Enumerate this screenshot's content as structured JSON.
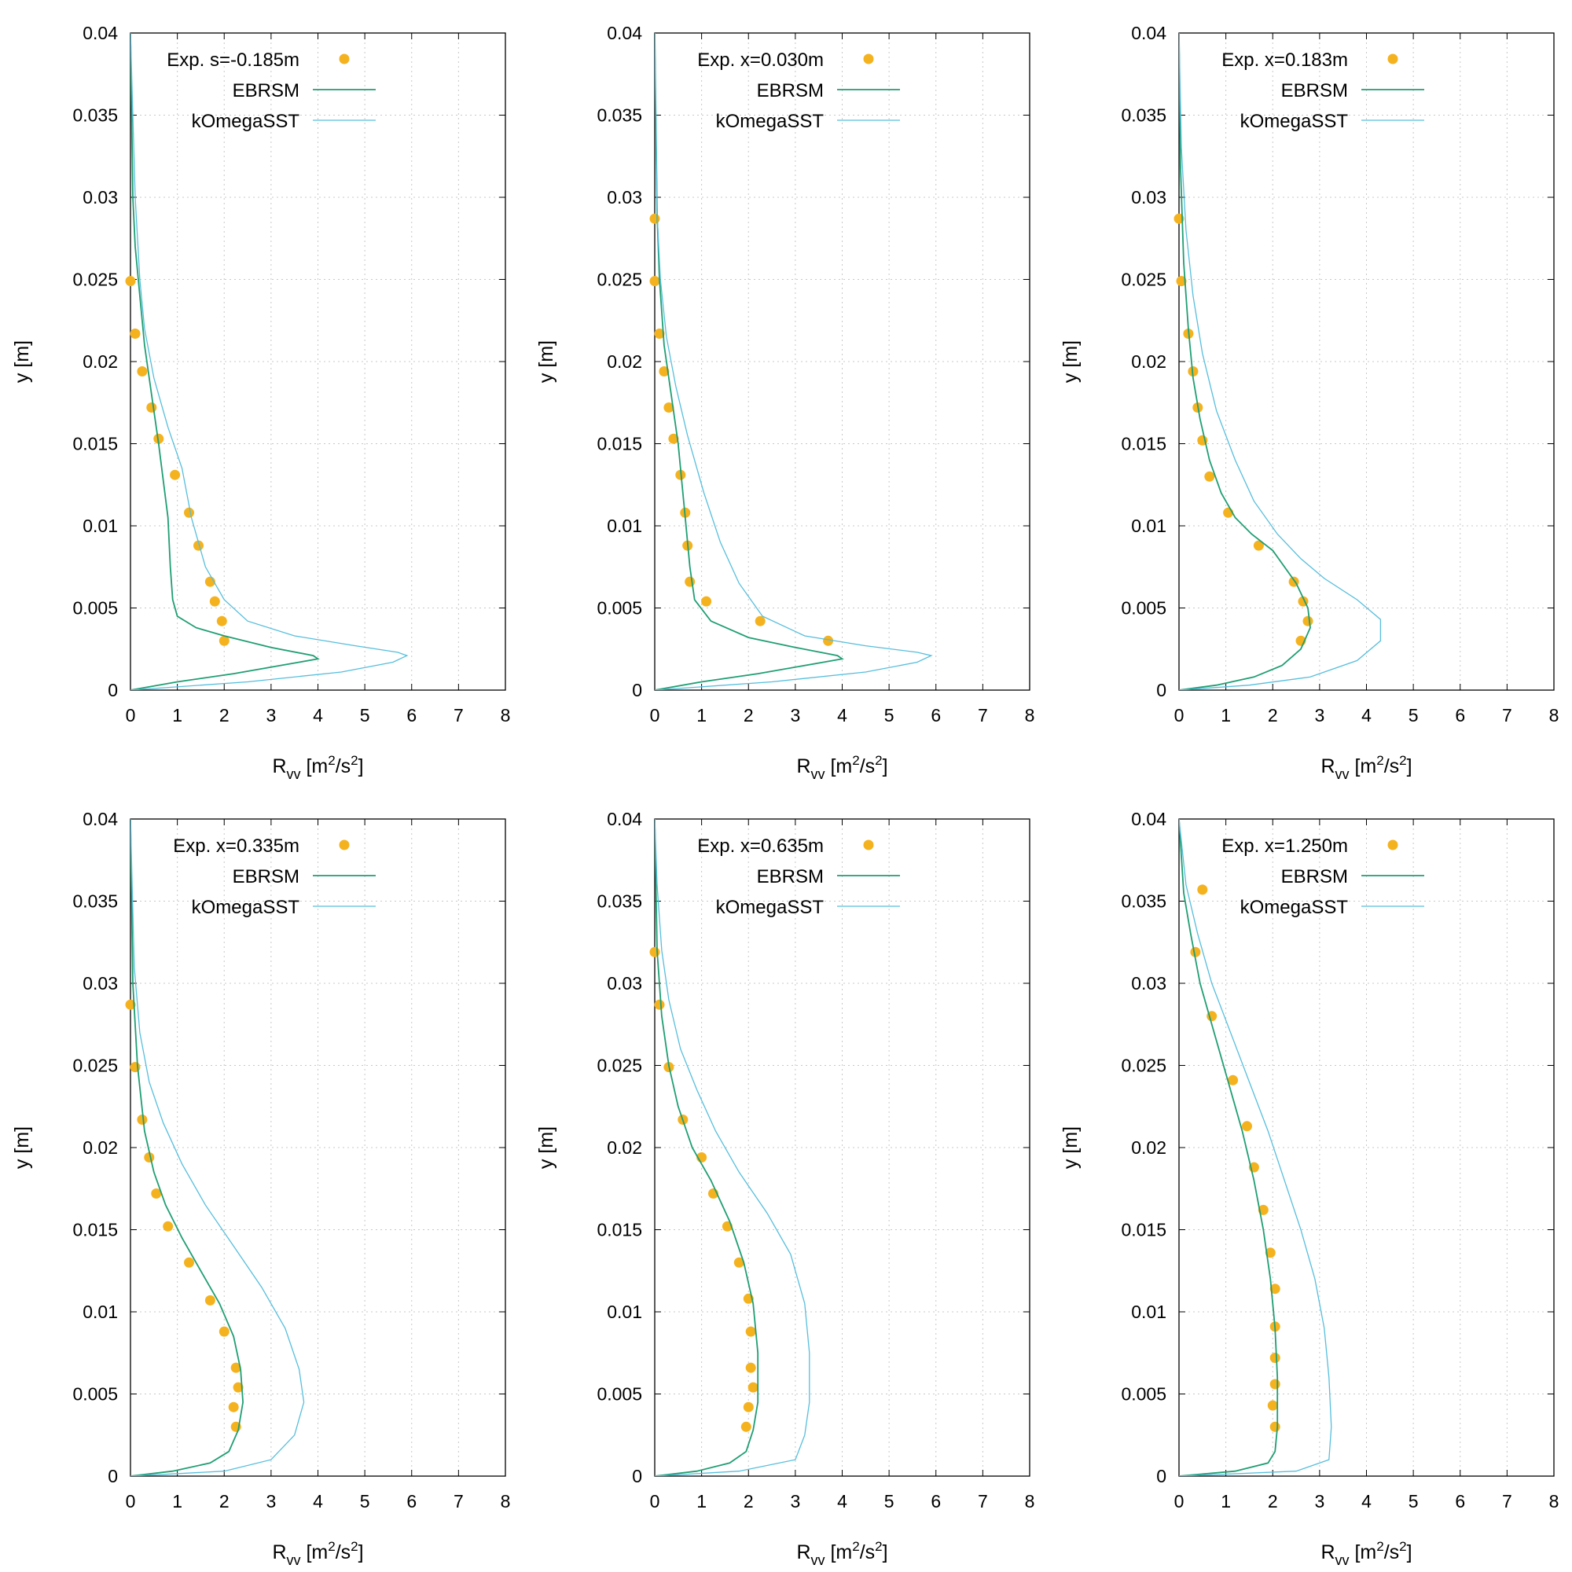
{
  "figure": {
    "exp_color": "#f4b21f",
    "ebrsm_color": "#1f9e73",
    "komega_color": "#56bedc",
    "frame_color": "#000000",
    "grid_color": "#c8c8c8"
  },
  "chart_data": [
    {
      "type": "scatter+line",
      "xlabel": "R",
      "xlabel_sub": "vv",
      "xlabel_unit": " [m",
      "xlabel_sup": "2",
      "xlabel_tail": "/s",
      "xlabel_sup2": "2",
      "xlabel_end": "]",
      "ylabel": "y [m]",
      "xlim": [
        0,
        8
      ],
      "ylim": [
        0,
        0.04
      ],
      "xticks": [
        "0",
        "1",
        "2",
        "3",
        "4",
        "5",
        "6",
        "7",
        "8"
      ],
      "yticks": [
        "0",
        "0.005",
        "0.01",
        "0.015",
        "0.02",
        "0.025",
        "0.03",
        "0.035",
        "0.04"
      ],
      "grid": true,
      "legend_position": "top-right",
      "series": [
        {
          "name": "Exp. s=-0.185m",
          "kind": "points",
          "x": [
            0.0,
            0.1,
            0.25,
            0.45,
            0.6,
            0.95,
            1.25,
            1.45,
            1.7,
            1.8,
            1.95,
            2.0
          ],
          "y": [
            0.0249,
            0.0217,
            0.0194,
            0.0172,
            0.0153,
            0.0131,
            0.0108,
            0.0088,
            0.0066,
            0.0054,
            0.0042,
            0.003
          ]
        },
        {
          "name": "EBRSM",
          "kind": "line",
          "x": [
            0.0,
            1.0,
            2.2,
            3.6,
            4.0,
            3.9,
            3.0,
            2.0,
            1.4,
            1.0,
            0.9,
            0.85,
            0.8,
            0.6,
            0.45,
            0.3,
            0.2,
            0.1,
            0.05,
            0.0
          ],
          "y": [
            0.0,
            0.0005,
            0.001,
            0.0017,
            0.0019,
            0.0021,
            0.0026,
            0.0033,
            0.0038,
            0.0045,
            0.0055,
            0.0075,
            0.0105,
            0.015,
            0.018,
            0.021,
            0.024,
            0.027,
            0.03,
            0.04
          ]
        },
        {
          "name": "kOmegaSST",
          "kind": "line",
          "x": [
            0.0,
            2.5,
            4.5,
            5.6,
            5.9,
            5.7,
            4.8,
            3.5,
            2.5,
            2.0,
            1.6,
            1.3,
            1.1,
            0.8,
            0.5,
            0.3,
            0.2,
            0.1,
            0.0
          ],
          "y": [
            0.0,
            0.0005,
            0.0011,
            0.0017,
            0.0021,
            0.0023,
            0.0027,
            0.0033,
            0.0042,
            0.0055,
            0.0075,
            0.0105,
            0.0135,
            0.016,
            0.019,
            0.022,
            0.025,
            0.03,
            0.04
          ]
        }
      ]
    },
    {
      "type": "scatter+line",
      "xlabel": "R",
      "xlabel_sub": "vv",
      "xlabel_unit": " [m",
      "xlabel_sup": "2",
      "xlabel_tail": "/s",
      "xlabel_sup2": "2",
      "xlabel_end": "]",
      "ylabel": "y [m]",
      "xlim": [
        0,
        8
      ],
      "ylim": [
        0,
        0.04
      ],
      "xticks": [
        "0",
        "1",
        "2",
        "3",
        "4",
        "5",
        "6",
        "7",
        "8"
      ],
      "yticks": [
        "0",
        "0.005",
        "0.01",
        "0.015",
        "0.02",
        "0.025",
        "0.03",
        "0.035",
        "0.04"
      ],
      "grid": true,
      "legend_position": "top-right",
      "series": [
        {
          "name": "Exp. x=0.030m",
          "kind": "points",
          "x": [
            0.0,
            0.0,
            0.1,
            0.2,
            0.3,
            0.4,
            0.55,
            0.65,
            0.7,
            0.75,
            1.1,
            2.25,
            3.7
          ],
          "y": [
            0.0287,
            0.0249,
            0.0217,
            0.0194,
            0.0172,
            0.0153,
            0.0131,
            0.0108,
            0.0088,
            0.0066,
            0.0054,
            0.0042,
            0.003
          ]
        },
        {
          "name": "EBRSM",
          "kind": "line",
          "x": [
            0.0,
            1.0,
            2.2,
            3.6,
            4.0,
            3.9,
            3.0,
            2.0,
            1.2,
            0.85,
            0.75,
            0.65,
            0.5,
            0.35,
            0.2,
            0.1,
            0.05,
            0.0
          ],
          "y": [
            0.0,
            0.0005,
            0.001,
            0.0017,
            0.0019,
            0.0021,
            0.0026,
            0.0032,
            0.0042,
            0.0055,
            0.0075,
            0.0105,
            0.015,
            0.018,
            0.021,
            0.025,
            0.029,
            0.04
          ]
        },
        {
          "name": "kOmegaSST",
          "kind": "line",
          "x": [
            0.0,
            2.5,
            4.5,
            5.6,
            5.9,
            5.6,
            4.5,
            3.2,
            2.3,
            1.8,
            1.4,
            1.05,
            0.7,
            0.45,
            0.25,
            0.12,
            0.05,
            0.0
          ],
          "y": [
            0.0,
            0.0005,
            0.0011,
            0.0017,
            0.0021,
            0.0023,
            0.0027,
            0.0033,
            0.0045,
            0.0065,
            0.009,
            0.012,
            0.0155,
            0.0185,
            0.0215,
            0.025,
            0.029,
            0.04
          ]
        }
      ]
    },
    {
      "type": "scatter+line",
      "xlabel": "R",
      "xlabel_sub": "vv",
      "xlabel_unit": " [m",
      "xlabel_sup": "2",
      "xlabel_tail": "/s",
      "xlabel_sup2": "2",
      "xlabel_end": "]",
      "ylabel": "y [m]",
      "xlim": [
        0,
        8
      ],
      "ylim": [
        0,
        0.04
      ],
      "xticks": [
        "0",
        "1",
        "2",
        "3",
        "4",
        "5",
        "6",
        "7",
        "8"
      ],
      "yticks": [
        "0",
        "0.005",
        "0.01",
        "0.015",
        "0.02",
        "0.025",
        "0.03",
        "0.035",
        "0.04"
      ],
      "grid": true,
      "legend_position": "top-right",
      "series": [
        {
          "name": "Exp. x=0.183m",
          "kind": "points",
          "x": [
            0.0,
            0.05,
            0.2,
            0.3,
            0.4,
            0.5,
            0.65,
            1.05,
            1.7,
            2.45,
            2.65,
            2.75,
            2.6
          ],
          "y": [
            0.0287,
            0.0249,
            0.0217,
            0.0194,
            0.0172,
            0.0152,
            0.013,
            0.0108,
            0.0088,
            0.0066,
            0.0054,
            0.0042,
            0.003
          ]
        },
        {
          "name": "EBRSM",
          "kind": "line",
          "x": [
            0.0,
            0.8,
            1.6,
            2.2,
            2.6,
            2.8,
            2.75,
            2.5,
            2.0,
            1.55,
            1.2,
            0.9,
            0.65,
            0.45,
            0.3,
            0.2,
            0.1,
            0.03,
            0.0
          ],
          "y": [
            0.0,
            0.0003,
            0.0008,
            0.0015,
            0.0025,
            0.0038,
            0.005,
            0.0065,
            0.0085,
            0.0095,
            0.0105,
            0.012,
            0.014,
            0.0165,
            0.019,
            0.022,
            0.026,
            0.032,
            0.04
          ]
        },
        {
          "name": "kOmegaSST",
          "kind": "line",
          "x": [
            0.0,
            1.5,
            2.8,
            3.8,
            4.3,
            4.3,
            3.8,
            3.1,
            2.6,
            2.1,
            1.6,
            1.2,
            0.8,
            0.5,
            0.3,
            0.15,
            0.05,
            0.0
          ],
          "y": [
            0.0,
            0.0003,
            0.0008,
            0.0018,
            0.003,
            0.0043,
            0.0055,
            0.0068,
            0.008,
            0.0095,
            0.0115,
            0.014,
            0.017,
            0.0205,
            0.024,
            0.028,
            0.033,
            0.04
          ]
        }
      ]
    },
    {
      "type": "scatter+line",
      "xlabel": "R",
      "xlabel_sub": "vv",
      "xlabel_unit": " [m",
      "xlabel_sup": "2",
      "xlabel_tail": "/s",
      "xlabel_sup2": "2",
      "xlabel_end": "]",
      "ylabel": "y [m]",
      "xlim": [
        0,
        8
      ],
      "ylim": [
        0,
        0.04
      ],
      "xticks": [
        "0",
        "1",
        "2",
        "3",
        "4",
        "5",
        "6",
        "7",
        "8"
      ],
      "yticks": [
        "0",
        "0.005",
        "0.01",
        "0.015",
        "0.02",
        "0.025",
        "0.03",
        "0.035",
        "0.04"
      ],
      "grid": true,
      "legend_position": "top-right",
      "series": [
        {
          "name": "Exp. x=0.335m",
          "kind": "points",
          "x": [
            0.0,
            0.1,
            0.25,
            0.4,
            0.55,
            0.8,
            1.25,
            1.7,
            2.0,
            2.25,
            2.3,
            2.2,
            2.25
          ],
          "y": [
            0.0287,
            0.0249,
            0.0217,
            0.0194,
            0.0172,
            0.0152,
            0.013,
            0.0107,
            0.0088,
            0.0066,
            0.0054,
            0.0042,
            0.003
          ]
        },
        {
          "name": "EBRSM",
          "kind": "line",
          "x": [
            0.0,
            0.9,
            1.7,
            2.1,
            2.3,
            2.4,
            2.35,
            2.2,
            1.9,
            1.5,
            1.1,
            0.75,
            0.5,
            0.3,
            0.15,
            0.05,
            0.0
          ],
          "y": [
            0.0,
            0.0003,
            0.0008,
            0.0015,
            0.0028,
            0.0045,
            0.0065,
            0.0085,
            0.0105,
            0.0125,
            0.0145,
            0.0165,
            0.0185,
            0.021,
            0.025,
            0.03,
            0.04
          ]
        },
        {
          "name": "kOmegaSST",
          "kind": "line",
          "x": [
            0.0,
            2.0,
            3.0,
            3.5,
            3.7,
            3.6,
            3.3,
            2.8,
            2.2,
            1.6,
            1.1,
            0.7,
            0.4,
            0.2,
            0.08,
            0.0
          ],
          "y": [
            0.0,
            0.0003,
            0.001,
            0.0025,
            0.0045,
            0.0065,
            0.009,
            0.0115,
            0.014,
            0.0165,
            0.019,
            0.0215,
            0.024,
            0.027,
            0.031,
            0.04
          ]
        }
      ]
    },
    {
      "type": "scatter+line",
      "xlabel": "R",
      "xlabel_sub": "vv",
      "xlabel_unit": " [m",
      "xlabel_sup": "2",
      "xlabel_tail": "/s",
      "xlabel_sup2": "2",
      "xlabel_end": "]",
      "ylabel": "y [m]",
      "xlim": [
        0,
        8
      ],
      "ylim": [
        0,
        0.04
      ],
      "xticks": [
        "0",
        "1",
        "2",
        "3",
        "4",
        "5",
        "6",
        "7",
        "8"
      ],
      "yticks": [
        "0",
        "0.005",
        "0.01",
        "0.015",
        "0.02",
        "0.025",
        "0.03",
        "0.035",
        "0.04"
      ],
      "grid": true,
      "legend_position": "top-right",
      "series": [
        {
          "name": "Exp. x=0.635m",
          "kind": "points",
          "x": [
            0.0,
            0.1,
            0.3,
            0.6,
            1.0,
            1.25,
            1.55,
            1.8,
            2.0,
            2.05,
            2.05,
            2.1,
            2.0,
            1.95
          ],
          "y": [
            0.0319,
            0.0287,
            0.0249,
            0.0217,
            0.0194,
            0.0172,
            0.0152,
            0.013,
            0.0108,
            0.0088,
            0.0066,
            0.0054,
            0.0042,
            0.003
          ]
        },
        {
          "name": "EBRSM",
          "kind": "line",
          "x": [
            0.0,
            0.9,
            1.6,
            1.95,
            2.1,
            2.2,
            2.2,
            2.1,
            1.9,
            1.6,
            1.2,
            0.8,
            0.5,
            0.3,
            0.15,
            0.05,
            0.0
          ],
          "y": [
            0.0,
            0.0003,
            0.0008,
            0.0015,
            0.0028,
            0.0045,
            0.0075,
            0.0105,
            0.013,
            0.0155,
            0.018,
            0.02,
            0.0225,
            0.025,
            0.028,
            0.032,
            0.04
          ]
        },
        {
          "name": "kOmegaSST",
          "kind": "line",
          "x": [
            0.0,
            1.8,
            3.0,
            3.2,
            3.3,
            3.3,
            3.2,
            2.9,
            2.4,
            1.8,
            1.3,
            0.9,
            0.55,
            0.3,
            0.15,
            0.05,
            0.0
          ],
          "y": [
            0.0,
            0.0003,
            0.001,
            0.0025,
            0.0045,
            0.0075,
            0.0105,
            0.0135,
            0.016,
            0.0185,
            0.021,
            0.0235,
            0.026,
            0.029,
            0.032,
            0.036,
            0.04
          ]
        }
      ]
    },
    {
      "type": "scatter+line",
      "xlabel": "R",
      "xlabel_sub": "vv",
      "xlabel_unit": " [m",
      "xlabel_sup": "2",
      "xlabel_tail": "/s",
      "xlabel_sup2": "2",
      "xlabel_end": "]",
      "ylabel": "y [m]",
      "xlim": [
        0,
        8
      ],
      "ylim": [
        0,
        0.04
      ],
      "xticks": [
        "0",
        "1",
        "2",
        "3",
        "4",
        "5",
        "6",
        "7",
        "8"
      ],
      "yticks": [
        "0",
        "0.005",
        "0.01",
        "0.015",
        "0.02",
        "0.025",
        "0.03",
        "0.035",
        "0.04"
      ],
      "grid": true,
      "legend_position": "top-right",
      "series": [
        {
          "name": "Exp. x=1.250m",
          "kind": "points",
          "x": [
            0.5,
            0.35,
            0.7,
            1.15,
            1.45,
            1.6,
            1.8,
            1.95,
            2.05,
            2.05,
            2.05,
            2.05,
            2.0,
            2.05
          ],
          "y": [
            0.0357,
            0.0319,
            0.028,
            0.0241,
            0.0213,
            0.0188,
            0.0162,
            0.0136,
            0.0114,
            0.0091,
            0.0072,
            0.0056,
            0.0043,
            0.003
          ]
        },
        {
          "name": "EBRSM",
          "kind": "line",
          "x": [
            0.0,
            1.2,
            1.9,
            2.05,
            2.1,
            2.1,
            2.05,
            1.95,
            1.8,
            1.6,
            1.35,
            1.05,
            0.75,
            0.45,
            0.25,
            0.1,
            0.0
          ],
          "y": [
            0.0,
            0.0003,
            0.0008,
            0.0015,
            0.003,
            0.006,
            0.009,
            0.012,
            0.015,
            0.018,
            0.021,
            0.024,
            0.027,
            0.03,
            0.033,
            0.0355,
            0.04
          ]
        },
        {
          "name": "kOmegaSST",
          "kind": "line",
          "x": [
            0.0,
            2.5,
            3.2,
            3.25,
            3.2,
            3.1,
            2.9,
            2.6,
            2.25,
            1.9,
            1.5,
            1.1,
            0.7,
            0.4,
            0.15,
            0.0
          ],
          "y": [
            0.0,
            0.0003,
            0.001,
            0.003,
            0.006,
            0.009,
            0.012,
            0.015,
            0.018,
            0.021,
            0.024,
            0.027,
            0.03,
            0.033,
            0.036,
            0.04
          ]
        }
      ]
    }
  ]
}
